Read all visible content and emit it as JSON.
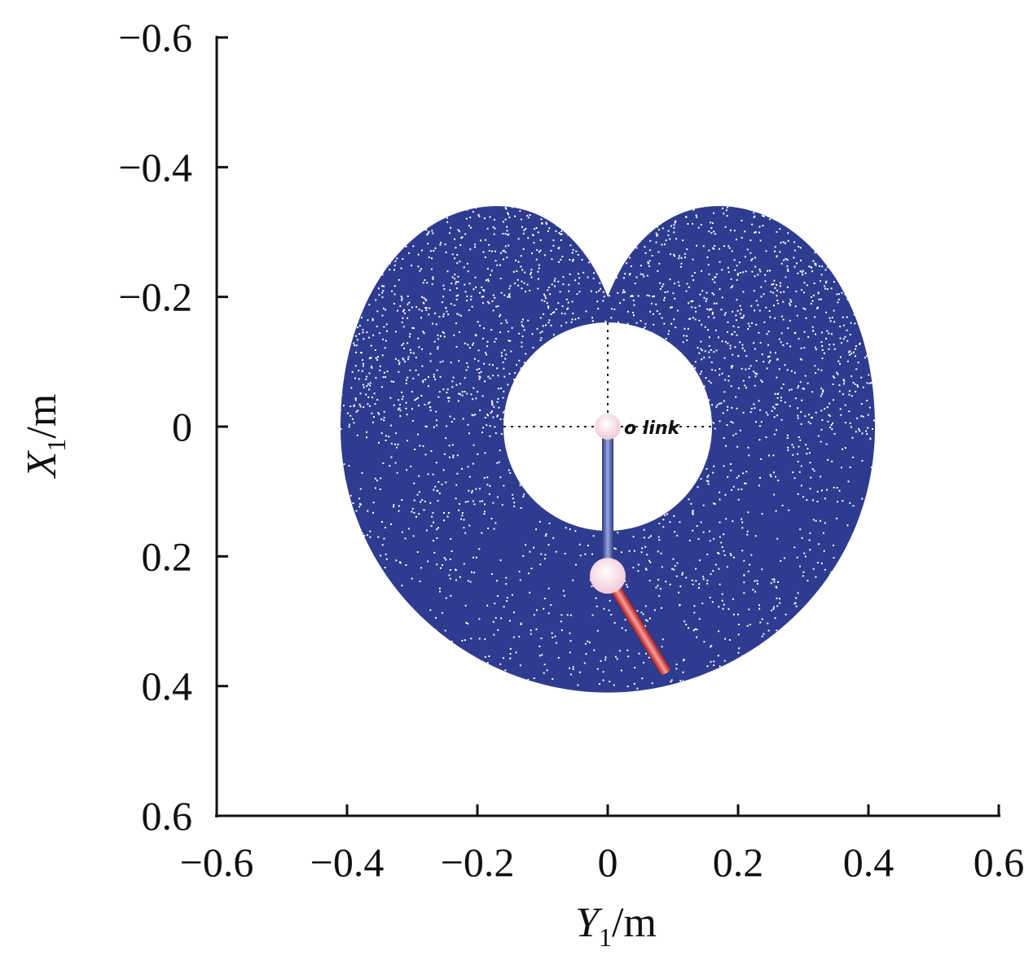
{
  "chart_data": {
    "type": "scatter",
    "xlabel": {
      "var": "Y",
      "sub": "1",
      "unit": "/m"
    },
    "ylabel": {
      "var": "X",
      "sub": "1",
      "unit": "/m"
    },
    "xlim": [
      -0.6,
      0.6
    ],
    "ylim": [
      -0.6,
      0.6
    ],
    "y_axis_inverted": true,
    "x_ticks": [
      -0.6,
      -0.4,
      -0.2,
      0,
      0.2,
      0.4,
      0.6
    ],
    "x_tick_labels": [
      "−0.6",
      "−0.4",
      "−0.2",
      "0",
      "0.2",
      "0.4",
      "0.6"
    ],
    "y_ticks": [
      -0.6,
      -0.4,
      -0.2,
      0,
      0.2,
      0.4,
      0.6
    ],
    "y_tick_labels": [
      "−0.6",
      "−0.4",
      "−0.2",
      "0",
      "0.2",
      "0.4",
      "0.6"
    ],
    "grid": false,
    "workspace": {
      "description_color": "#2e3b8e",
      "outer_reach": 0.41,
      "inner_hole_radius": 0.16,
      "lobe_peak_x": -0.34,
      "notch_x": -0.2,
      "dot_color": "#ffffff"
    },
    "links": [
      {
        "color": "#3a4a9a",
        "from": [
          0,
          0
        ],
        "to": [
          0,
          0.23
        ]
      },
      {
        "color": "#d23a3a",
        "from": [
          0,
          0.23
        ],
        "to": [
          0.09,
          0.38
        ]
      }
    ],
    "joints": [
      {
        "at": [
          0,
          0
        ],
        "color": "#f4e2ea"
      },
      {
        "at": [
          0,
          0.23
        ],
        "color": "#f4e2ea"
      }
    ],
    "annotation": "o link"
  }
}
